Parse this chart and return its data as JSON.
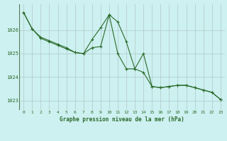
{
  "title": "Graphe pression niveau de la mer (hPa)",
  "bg_color": "#cdf0f0",
  "grid_color": "#b0c8c8",
  "line_color": "#2a6b2a",
  "xlim": [
    -0.5,
    23.5
  ],
  "ylim": [
    1022.6,
    1027.1
  ],
  "yticks": [
    1023,
    1024,
    1025,
    1026
  ],
  "xticks": [
    0,
    1,
    2,
    3,
    4,
    5,
    6,
    7,
    8,
    9,
    10,
    11,
    12,
    13,
    14,
    15,
    16,
    17,
    18,
    19,
    20,
    21,
    22,
    23
  ],
  "series1_x": [
    0,
    1,
    2,
    3,
    4,
    5,
    6,
    7,
    8,
    9,
    10,
    11,
    12,
    13,
    14,
    15,
    16,
    17,
    18,
    19,
    20,
    21,
    22,
    23
  ],
  "series1_y": [
    1026.75,
    1026.05,
    1025.7,
    1025.55,
    1025.4,
    1025.25,
    1025.05,
    1025.0,
    1025.25,
    1025.3,
    1026.65,
    1026.35,
    1025.5,
    1024.35,
    1024.2,
    1023.6,
    1023.55,
    1023.6,
    1023.65,
    1023.65,
    1023.55,
    1023.45,
    1023.35,
    1023.05
  ],
  "series2_x": [
    0,
    1,
    2,
    3,
    4,
    5,
    6,
    7,
    8,
    9,
    10,
    11,
    12,
    13,
    14,
    15,
    16,
    17,
    18,
    19,
    20,
    21,
    22,
    23
  ],
  "series2_y": [
    1026.75,
    1026.05,
    1025.65,
    1025.5,
    1025.35,
    1025.2,
    1025.05,
    1025.0,
    1025.6,
    1026.1,
    1026.65,
    1025.0,
    1024.35,
    1024.35,
    1025.0,
    1023.6,
    1023.55,
    1023.6,
    1023.65,
    1023.65,
    1023.55,
    1023.45,
    1023.35,
    1023.05
  ],
  "xlabel_fontsize": 5.5,
  "tick_fontsize": 4.5,
  "ytick_fontsize": 5.0
}
